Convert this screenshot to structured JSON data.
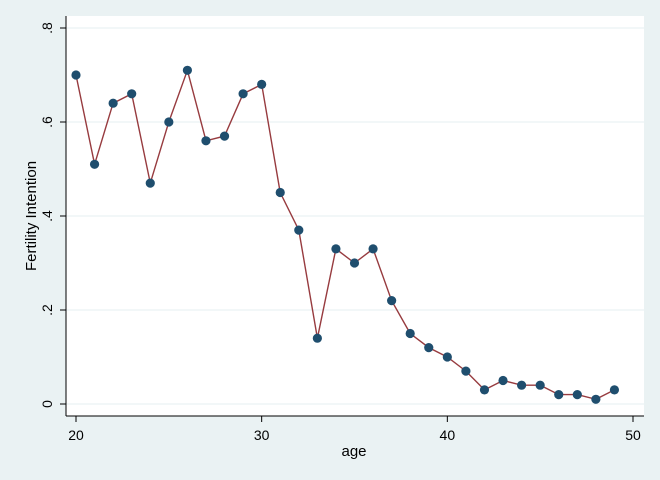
{
  "chart_data": {
    "type": "line",
    "title": "",
    "xlabel": "age",
    "ylabel": "Fertility Intention",
    "xlim": [
      20,
      50
    ],
    "ylim": [
      0,
      0.8
    ],
    "x_ticks": [
      20,
      30,
      40,
      50
    ],
    "x_tick_labels": [
      "20",
      "30",
      "40",
      "50"
    ],
    "y_ticks": [
      0,
      0.2,
      0.4,
      0.6,
      0.8
    ],
    "y_tick_labels": [
      "0",
      ".2",
      ".4",
      ".6",
      ".8"
    ],
    "grid": "horizontal",
    "series": [
      {
        "x": [
          20,
          21,
          22,
          23,
          24,
          25,
          26,
          27,
          28,
          29,
          30,
          31,
          32,
          33,
          34,
          35,
          36,
          37,
          38,
          39,
          40,
          41,
          42,
          43,
          44,
          45,
          46,
          47,
          48,
          49
        ],
        "values": [
          0.7,
          0.51,
          0.64,
          0.66,
          0.47,
          0.6,
          0.71,
          0.56,
          0.57,
          0.66,
          0.68,
          0.45,
          0.37,
          0.14,
          0.33,
          0.3,
          0.33,
          0.22,
          0.15,
          0.12,
          0.1,
          0.07,
          0.03,
          0.05,
          0.04,
          0.04,
          0.02,
          0.02,
          0.01,
          0.03
        ],
        "line_color": "#973b3f",
        "marker_color": "#1f4e6e"
      }
    ]
  }
}
